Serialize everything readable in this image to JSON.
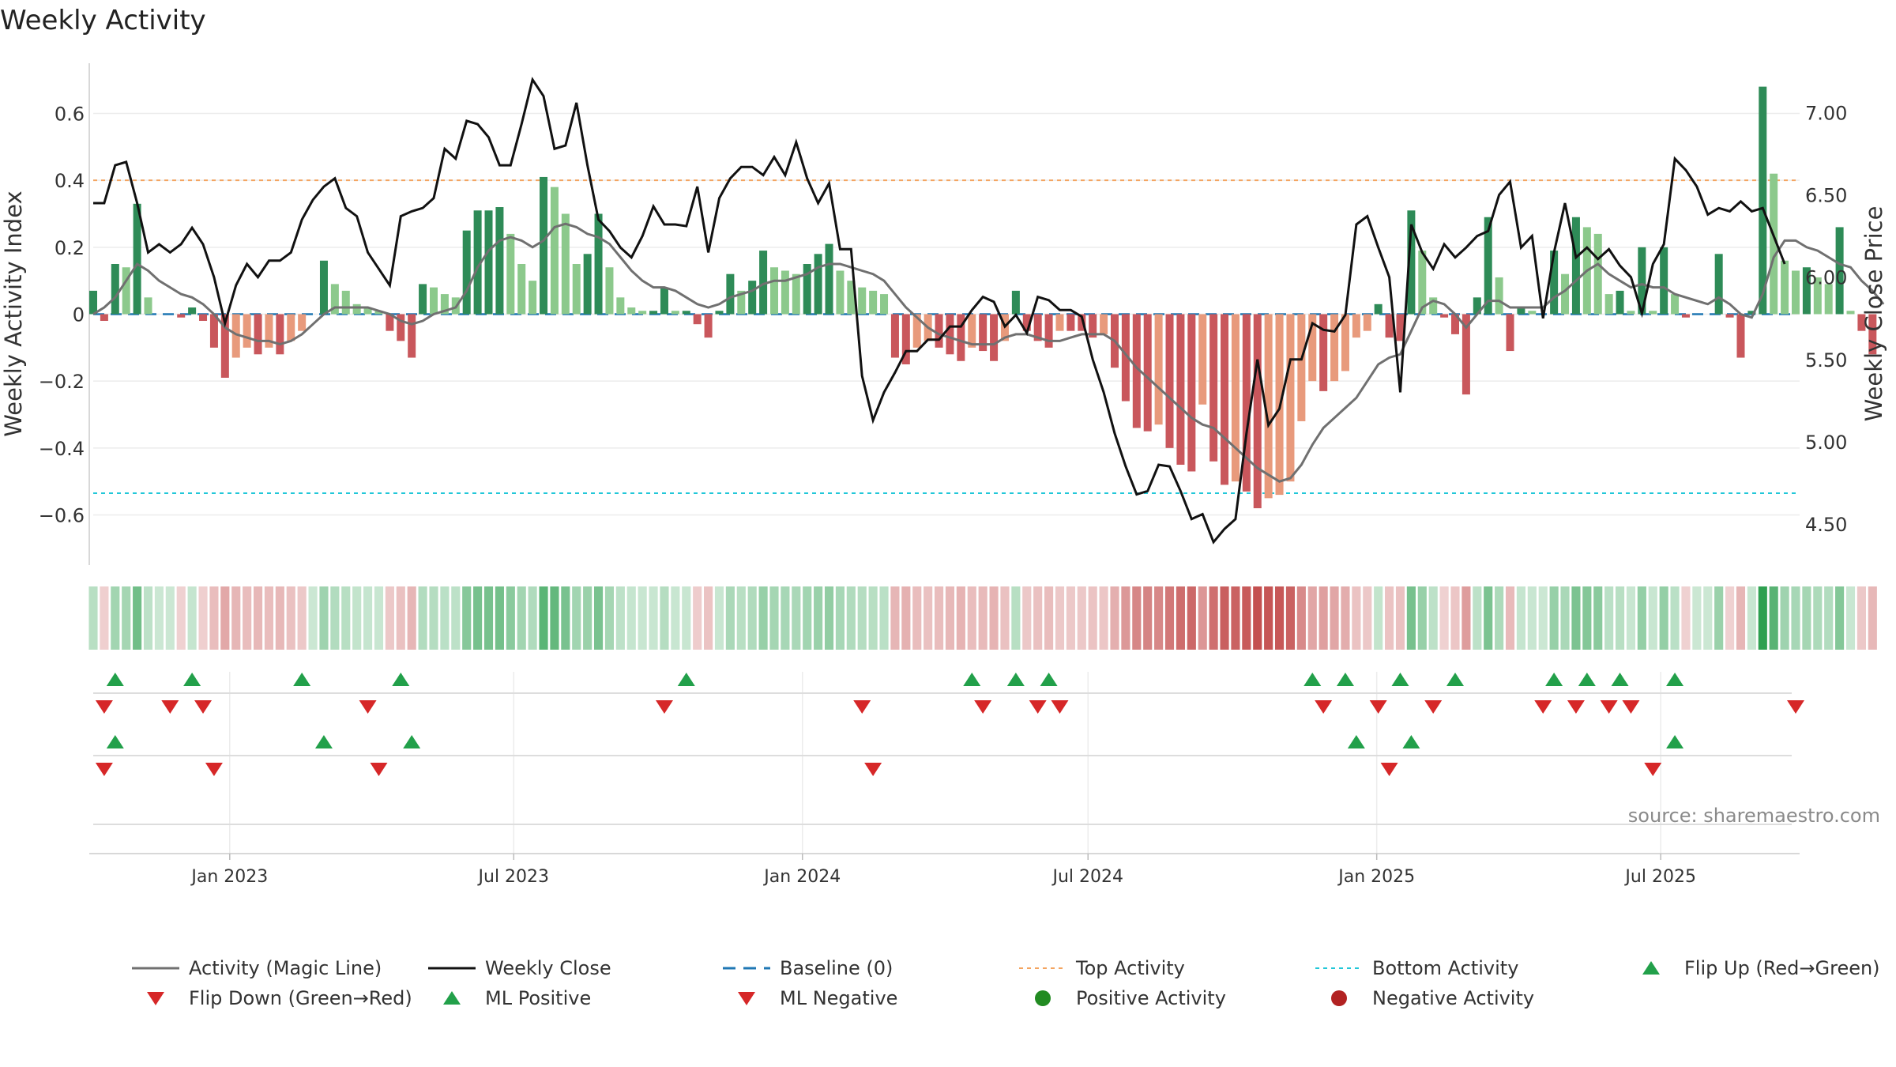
{
  "chart_data": {
    "type": "bar",
    "title": "Weekly Activity",
    "ylabel_left": "Weekly Activity Index",
    "ylabel_right": "Weekly Close Price",
    "source": "source: sharemaestro.com",
    "x_start": "2022-10-06",
    "x_range": [
      "2022-10-06",
      "2025-09-25"
    ],
    "x_ticks": [
      {
        "date": "2023-01-01",
        "label": "Jan 2023"
      },
      {
        "date": "2023-07-01",
        "label": "Jul 2023"
      },
      {
        "date": "2024-01-01",
        "label": "Jan 2024"
      },
      {
        "date": "2024-07-01",
        "label": "Jul 2024"
      },
      {
        "date": "2025-01-01",
        "label": "Jan 2025"
      },
      {
        "date": "2025-07-01",
        "label": "Jul 2025"
      }
    ],
    "y_left": {
      "lim": [
        -0.75,
        0.75
      ],
      "ticks": [
        0.6,
        0.4,
        0.2,
        0,
        -0.2,
        -0.4,
        -0.6
      ],
      "tick_labels": [
        "0.6",
        "0.4",
        "0.2",
        "0",
        "−0.2",
        "−0.4",
        "−0.6"
      ]
    },
    "y_right": {
      "lim": [
        4.25,
        7.3
      ],
      "ticks": [
        7.0,
        6.5,
        6.0,
        5.5,
        5.0,
        4.5
      ],
      "tick_labels": [
        "7.00",
        "6.50",
        "6.00",
        "5.50",
        "5.00",
        "4.50"
      ]
    },
    "top_activity": 0.4,
    "bottom_activity": -0.535,
    "activity": [
      0.07,
      -0.02,
      0.15,
      0.14,
      0.33,
      0.05,
      0.0,
      0.0,
      -0.01,
      0.02,
      -0.02,
      -0.1,
      -0.19,
      -0.13,
      -0.1,
      -0.12,
      -0.1,
      -0.12,
      -0.08,
      -0.05,
      0.0,
      0.16,
      0.09,
      0.07,
      0.03,
      0.02,
      0.01,
      -0.05,
      -0.08,
      -0.13,
      0.09,
      0.08,
      0.06,
      0.05,
      0.25,
      0.31,
      0.31,
      0.32,
      0.24,
      0.15,
      0.1,
      0.41,
      0.38,
      0.3,
      0.15,
      0.18,
      0.3,
      0.14,
      0.05,
      0.02,
      0.01,
      0.01,
      0.08,
      0.01,
      0.01,
      -0.03,
      -0.07,
      0.01,
      0.12,
      0.07,
      0.1,
      0.19,
      0.14,
      0.13,
      0.12,
      0.15,
      0.18,
      0.21,
      0.13,
      0.1,
      0.08,
      0.07,
      0.06,
      -0.13,
      -0.15,
      -0.1,
      -0.08,
      -0.1,
      -0.12,
      -0.14,
      -0.1,
      -0.11,
      -0.14,
      -0.08,
      0.07,
      -0.05,
      -0.08,
      -0.1,
      -0.05,
      -0.05,
      -0.05,
      -0.07,
      -0.06,
      -0.16,
      -0.26,
      -0.34,
      -0.35,
      -0.33,
      -0.4,
      -0.45,
      -0.47,
      -0.27,
      -0.44,
      -0.51,
      -0.5,
      -0.53,
      -0.58,
      -0.55,
      -0.54,
      -0.5,
      -0.32,
      -0.2,
      -0.23,
      -0.2,
      -0.17,
      -0.07,
      -0.05,
      0.03,
      -0.07,
      -0.08,
      0.31,
      0.19,
      0.05,
      -0.01,
      -0.06,
      -0.24,
      0.05,
      0.29,
      0.11,
      -0.11,
      0.02,
      0.01,
      0.0,
      0.19,
      0.12,
      0.29,
      0.26,
      0.24,
      0.06,
      0.07,
      0.01,
      0.2,
      0.01,
      0.2,
      0.06,
      -0.01,
      0.0,
      0.0,
      0.18,
      -0.01,
      -0.13,
      0.01,
      0.68,
      0.42,
      0.16,
      0.13,
      0.14,
      0.11,
      0.09,
      0.26,
      0.01,
      -0.05,
      -0.12
    ],
    "magic_line": [
      0.0,
      0.02,
      0.05,
      0.1,
      0.15,
      0.13,
      0.1,
      0.08,
      0.06,
      0.05,
      0.03,
      0.0,
      -0.04,
      -0.06,
      -0.07,
      -0.08,
      -0.08,
      -0.09,
      -0.08,
      -0.06,
      -0.03,
      0.0,
      0.02,
      0.02,
      0.02,
      0.02,
      0.01,
      0.0,
      -0.02,
      -0.03,
      -0.02,
      0.0,
      0.01,
      0.02,
      0.07,
      0.14,
      0.19,
      0.22,
      0.23,
      0.22,
      0.2,
      0.22,
      0.26,
      0.27,
      0.26,
      0.24,
      0.23,
      0.21,
      0.17,
      0.13,
      0.1,
      0.08,
      0.08,
      0.07,
      0.05,
      0.03,
      0.02,
      0.03,
      0.05,
      0.06,
      0.07,
      0.09,
      0.1,
      0.1,
      0.11,
      0.12,
      0.14,
      0.15,
      0.15,
      0.14,
      0.13,
      0.12,
      0.1,
      0.06,
      0.02,
      -0.01,
      -0.04,
      -0.06,
      -0.07,
      -0.08,
      -0.09,
      -0.09,
      -0.09,
      -0.07,
      -0.06,
      -0.06,
      -0.07,
      -0.08,
      -0.08,
      -0.07,
      -0.06,
      -0.06,
      -0.06,
      -0.08,
      -0.12,
      -0.16,
      -0.19,
      -0.22,
      -0.25,
      -0.28,
      -0.31,
      -0.33,
      -0.34,
      -0.37,
      -0.4,
      -0.43,
      -0.46,
      -0.48,
      -0.5,
      -0.49,
      -0.45,
      -0.39,
      -0.34,
      -0.31,
      -0.28,
      -0.25,
      -0.2,
      -0.15,
      -0.13,
      -0.12,
      -0.05,
      0.02,
      0.04,
      0.03,
      0.0,
      -0.04,
      0.0,
      0.04,
      0.04,
      0.02,
      0.02,
      0.02,
      0.02,
      0.05,
      0.07,
      0.1,
      0.13,
      0.15,
      0.12,
      0.1,
      0.08,
      0.09,
      0.08,
      0.08,
      0.06,
      0.05,
      0.04,
      0.03,
      0.05,
      0.03,
      0.0,
      -0.01,
      0.06,
      0.17,
      0.22,
      0.22,
      0.2,
      0.19,
      0.17,
      0.15,
      0.14,
      0.1,
      0.07,
      0.03
    ]
  },
  "weekly_close": [
    6.45,
    6.45,
    6.68,
    6.7,
    6.45,
    6.15,
    6.2,
    6.15,
    6.2,
    6.3,
    6.2,
    6.0,
    5.72,
    5.95,
    6.08,
    6.0,
    6.1,
    6.1,
    6.15,
    6.35,
    6.47,
    6.55,
    6.6,
    6.42,
    6.37,
    6.15,
    6.05,
    5.95,
    6.37,
    6.4,
    6.42,
    6.48,
    6.78,
    6.72,
    6.95,
    6.93,
    6.85,
    6.68,
    6.68,
    6.93,
    7.2,
    7.1,
    6.78,
    6.8,
    7.06,
    6.68,
    6.35,
    6.28,
    6.18,
    6.12,
    6.25,
    6.43,
    6.32,
    6.32,
    6.31,
    6.55,
    6.15,
    6.48,
    6.6,
    6.67,
    6.67,
    6.62,
    6.73,
    6.62,
    6.82,
    6.6,
    6.45,
    6.57,
    6.17,
    6.17,
    5.4,
    5.13,
    5.3,
    5.42,
    5.55,
    5.55,
    5.62,
    5.62,
    5.7,
    5.7,
    5.8,
    5.88,
    5.85,
    5.7,
    5.77,
    5.66,
    5.88,
    5.86,
    5.8,
    5.8,
    5.76,
    5.5,
    5.3,
    5.05,
    4.85,
    4.68,
    4.7,
    4.86,
    4.85,
    4.7,
    4.53,
    4.56,
    4.39,
    4.47,
    4.53,
    5.05,
    5.5,
    5.1,
    5.2,
    5.5,
    5.5,
    5.72,
    5.68,
    5.67,
    5.77,
    6.32,
    6.37,
    6.18,
    6.0,
    5.3,
    6.32,
    6.15,
    6.05,
    6.2,
    6.12,
    6.18,
    6.25,
    6.28,
    6.5,
    6.58,
    6.18,
    6.25,
    5.75,
    6.15,
    6.45,
    6.12,
    6.18,
    6.11,
    6.17,
    6.07,
    6.0,
    5.78,
    6.08,
    6.2,
    6.72,
    6.65,
    6.55,
    6.38,
    6.42,
    6.4,
    6.46,
    6.4,
    6.42,
    6.25,
    6.08
  ],
  "signals": {
    "flip_up": [
      2,
      9,
      19,
      28,
      54,
      80,
      84,
      87,
      111,
      114,
      119,
      124,
      133,
      136,
      139,
      144
    ],
    "flip_down": [
      1,
      7,
      10,
      25,
      52,
      70,
      81,
      86,
      88,
      112,
      117,
      122,
      132,
      135,
      138,
      140,
      155
    ],
    "ml_positive": [
      2,
      21,
      29,
      115,
      120,
      144
    ],
    "ml_negative": [
      1,
      11,
      26,
      71,
      118,
      142
    ]
  },
  "colors": {
    "pos_strong": "#2e8b57",
    "pos_weak": "#8cc98c",
    "neg_strong": "#c9575c",
    "neg_weak": "#e89a7c",
    "magic_line": "#707070",
    "close_line": "#111111",
    "baseline": "#1f77b4",
    "top_line": "#f4a460",
    "bottom_line": "#22c7d8",
    "up_marker": "#22a04a",
    "down_marker": "#d62728",
    "pos_dot": "#228b22",
    "neg_dot": "#b22222"
  },
  "legend": [
    {
      "key": "magic",
      "label": "Activity (Magic Line)"
    },
    {
      "key": "close",
      "label": "Weekly Close"
    },
    {
      "key": "baseline",
      "label": "Baseline (0)"
    },
    {
      "key": "top",
      "label": "Top Activity"
    },
    {
      "key": "bottom",
      "label": "Bottom Activity"
    },
    {
      "key": "flipup",
      "label": "Flip Up (Red→Green)"
    },
    {
      "key": "flipdown",
      "label": "Flip Down (Green→Red)"
    },
    {
      "key": "mlpos",
      "label": "ML Positive"
    },
    {
      "key": "mlneg",
      "label": "ML Negative"
    },
    {
      "key": "posact",
      "label": "Positive Activity"
    },
    {
      "key": "negact",
      "label": "Negative Activity"
    }
  ]
}
